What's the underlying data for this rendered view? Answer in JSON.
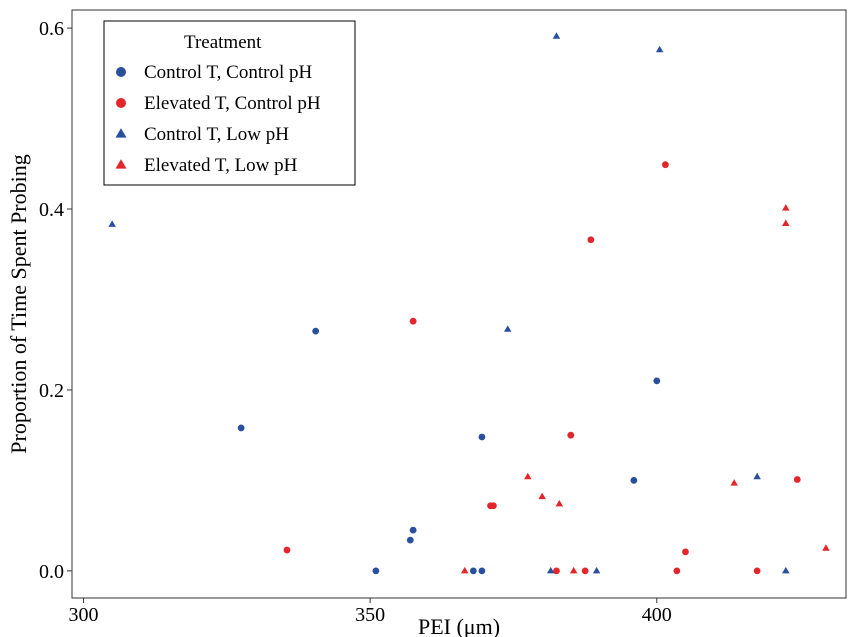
{
  "chart_data": {
    "type": "scatter",
    "xlabel": "PEI (μm)",
    "ylabel": "Proportion of Time Spent Probing",
    "xlim": [
      298,
      433
    ],
    "ylim": [
      -0.03,
      0.62
    ],
    "x_ticks": [
      300,
      350,
      400
    ],
    "y_ticks": [
      0.0,
      0.2,
      0.4,
      0.6
    ],
    "x_tick_labels": [
      "300",
      "350",
      "400"
    ],
    "y_tick_labels": [
      "0.0",
      "0.2",
      "0.4",
      "0.6"
    ],
    "grid": false,
    "legend": {
      "title": "Treatment",
      "position": "top-left"
    },
    "series": [
      {
        "name": "Control T, Control pH",
        "color": "#2a4f9c",
        "marker": "circle",
        "points": [
          [
            327.5,
            0.158
          ],
          [
            340.5,
            0.265
          ],
          [
            351,
            0.0
          ],
          [
            357,
            0.034
          ],
          [
            357.5,
            0.045
          ],
          [
            368,
            0.0
          ],
          [
            369.5,
            0.0
          ],
          [
            369.5,
            0.148
          ],
          [
            396,
            0.1
          ],
          [
            400,
            0.21
          ]
        ]
      },
      {
        "name": "Elevated T, Control pH",
        "color": "#e3262b",
        "marker": "circle",
        "points": [
          [
            335.5,
            0.023
          ],
          [
            357.5,
            0.276
          ],
          [
            371,
            0.072
          ],
          [
            371.5,
            0.072
          ],
          [
            382.5,
            0.0
          ],
          [
            385,
            0.15
          ],
          [
            387.5,
            0.0
          ],
          [
            388.5,
            0.366
          ],
          [
            401.5,
            0.449
          ],
          [
            403.5,
            0.0
          ],
          [
            405,
            0.021
          ],
          [
            417.5,
            0.0
          ],
          [
            424.5,
            0.101
          ]
        ]
      },
      {
        "name": "Control T, Low pH",
        "color": "#2a4f9c",
        "marker": "triangle",
        "points": [
          [
            305,
            0.383
          ],
          [
            374,
            0.267
          ],
          [
            381.5,
            0.0
          ],
          [
            382.5,
            0.591
          ],
          [
            389.5,
            0.0
          ],
          [
            400.5,
            0.576
          ],
          [
            417.5,
            0.104
          ],
          [
            422.5,
            0.0
          ]
        ]
      },
      {
        "name": "Elevated T, Low pH",
        "color": "#e3262b",
        "marker": "triangle",
        "points": [
          [
            366.5,
            0.0
          ],
          [
            377.5,
            0.104
          ],
          [
            380,
            0.082
          ],
          [
            383,
            0.074
          ],
          [
            385.5,
            0.0
          ],
          [
            413.5,
            0.097
          ],
          [
            422.5,
            0.401
          ],
          [
            422.5,
            0.384
          ],
          [
            429.5,
            0.025
          ]
        ]
      }
    ]
  }
}
